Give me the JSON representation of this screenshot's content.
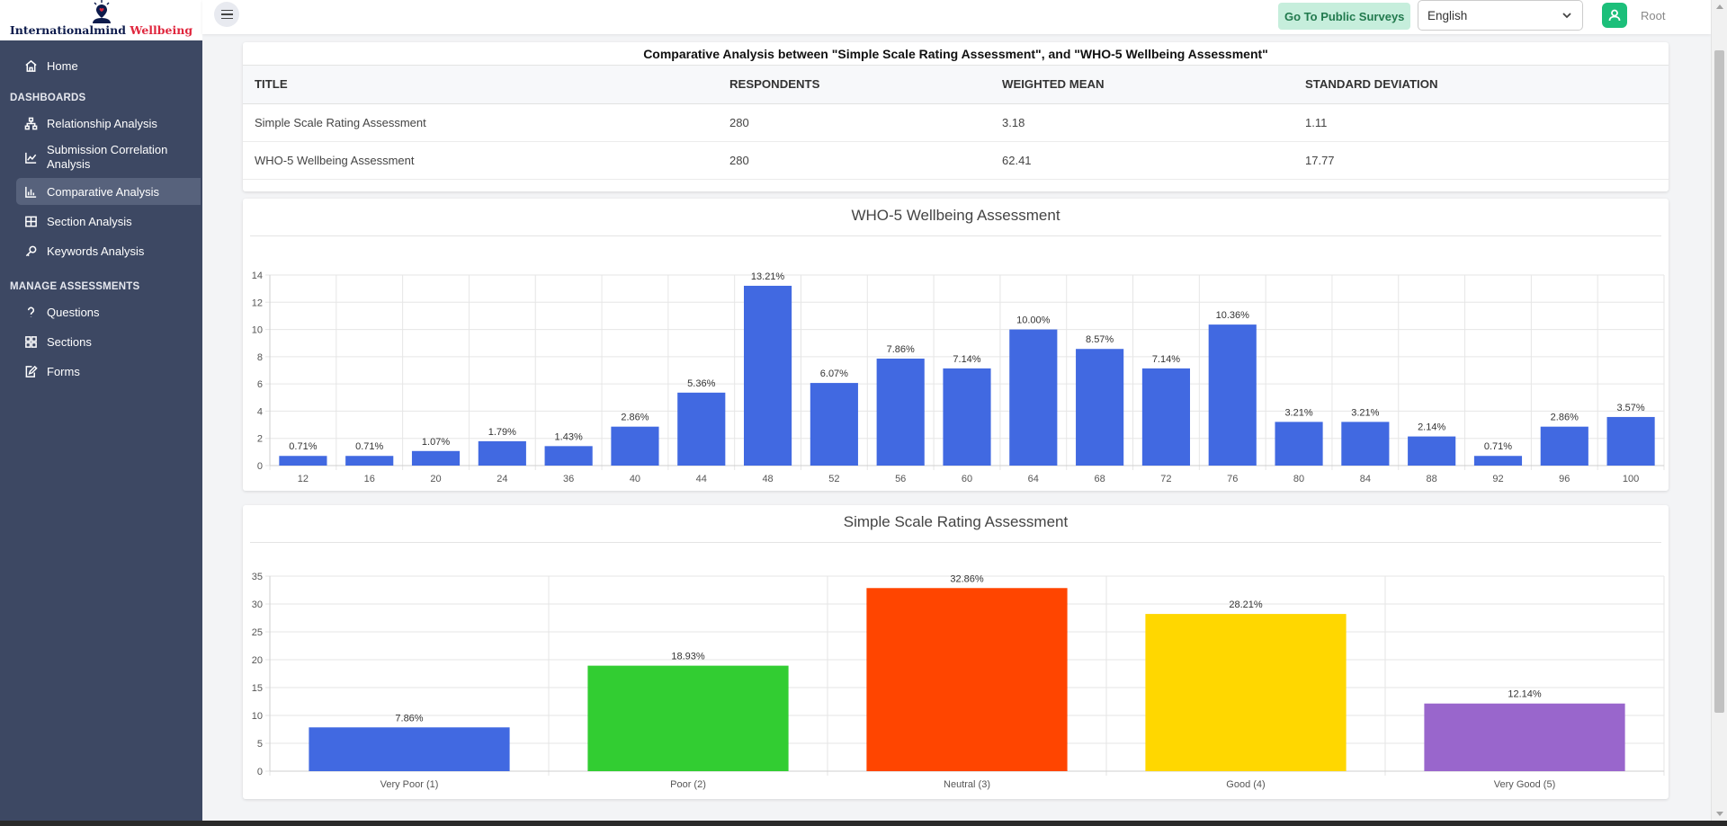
{
  "brand": {
    "name_part1": "Internationalmind",
    "name_part2": "Wellbeing",
    "accent_color": "#e0263d"
  },
  "sidebar": {
    "home": "Home",
    "dashboards_label": "DASHBOARDS",
    "dashboards": [
      {
        "label": "Relationship Analysis",
        "icon": "sitemap-icon"
      },
      {
        "label": "Submission Correlation Analysis",
        "icon": "line-chart-icon"
      },
      {
        "label": "Comparative Analysis",
        "icon": "bar-chart-icon",
        "active": true
      },
      {
        "label": "Section Analysis",
        "icon": "table-icon"
      },
      {
        "label": "Keywords Analysis",
        "icon": "key-icon"
      }
    ],
    "manage_label": "MANAGE ASSESSMENTS",
    "manage": [
      {
        "label": "Questions",
        "icon": "question-icon"
      },
      {
        "label": "Sections",
        "icon": "grid-icon"
      },
      {
        "label": "Forms",
        "icon": "form-icon"
      }
    ]
  },
  "topbar": {
    "public_surveys_label": "Go To Public Surveys",
    "language": "English",
    "username": "Root"
  },
  "comparison": {
    "heading": "Comparative Analysis between \"Simple Scale Rating Assessment\", and \"WHO-5 Wellbeing Assessment\"",
    "columns": [
      "TITLE",
      "RESPONDENTS",
      "WEIGHTED MEAN",
      "STANDARD DEVIATION"
    ],
    "rows": [
      [
        "Simple Scale Rating Assessment",
        "280",
        "3.18",
        "1.11"
      ],
      [
        "WHO-5 Wellbeing Assessment",
        "280",
        "62.41",
        "17.77"
      ]
    ]
  },
  "chart_data": [
    {
      "type": "bar",
      "title": "WHO-5 Wellbeing Assessment",
      "categories": [
        "12",
        "16",
        "20",
        "24",
        "36",
        "40",
        "44",
        "48",
        "52",
        "56",
        "60",
        "64",
        "68",
        "72",
        "76",
        "80",
        "84",
        "88",
        "92",
        "96",
        "100"
      ],
      "values": [
        0.71,
        0.71,
        1.07,
        1.79,
        1.43,
        2.86,
        5.36,
        13.21,
        6.07,
        7.86,
        7.14,
        10.0,
        8.57,
        7.14,
        10.36,
        3.21,
        3.21,
        2.14,
        0.71,
        2.86,
        3.57
      ],
      "data_labels": [
        "0.71%",
        "0.71%",
        "1.07%",
        "1.79%",
        "1.43%",
        "2.86%",
        "5.36%",
        "13.21%",
        "6.07%",
        "7.86%",
        "7.14%",
        "10.00%",
        "8.57%",
        "7.14%",
        "10.36%",
        "3.21%",
        "3.21%",
        "2.14%",
        "0.71%",
        "2.86%",
        "3.57%"
      ],
      "yticks": [
        "0",
        "2",
        "4",
        "6",
        "8",
        "10",
        "12",
        "14"
      ],
      "ylim": [
        0,
        14
      ],
      "colors": [
        "#4169e1"
      ],
      "grid": true
    },
    {
      "type": "bar",
      "title": "Simple Scale Rating Assessment",
      "categories": [
        "Very Poor (1)",
        "Poor (2)",
        "Neutral (3)",
        "Good (4)",
        "Very Good (5)"
      ],
      "values": [
        7.86,
        18.93,
        32.86,
        28.21,
        12.14
      ],
      "data_labels": [
        "7.86%",
        "18.93%",
        "32.86%",
        "28.21%",
        "12.14%"
      ],
      "yticks": [
        "0",
        "5",
        "10",
        "15",
        "20",
        "25",
        "30",
        "35"
      ],
      "ylim": [
        0,
        35
      ],
      "colors": [
        "#4169e1",
        "#32cd32",
        "#ff4500",
        "#ffd700",
        "#9966cc"
      ],
      "grid": true
    }
  ]
}
